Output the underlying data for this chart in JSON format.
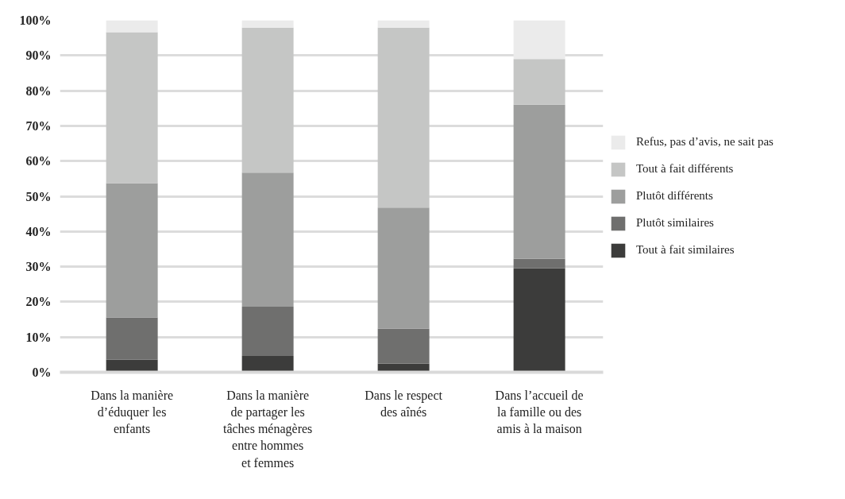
{
  "chart_data": {
    "type": "bar",
    "stacked": true,
    "categories": [
      "Dans la manière\nd’éduquer les\nenfants",
      "Dans la manière\nde partager les\ntâches ménagères\nentre hommes\net femmes",
      "Dans le respect\ndes aînés",
      "Dans l’accueil de\nla famille ou des\namis à la maison"
    ],
    "series": [
      {
        "name": "Tout à fait similaires",
        "color": "#3c3c3b",
        "values": [
          3.6,
          4.6,
          2.4,
          29.5
        ]
      },
      {
        "name": "Plutôt similaires",
        "color": "#6f6f6e",
        "values": [
          12.0,
          14.0,
          10.0,
          2.7
        ]
      },
      {
        "name": "Plutôt différents",
        "color": "#9d9e9d",
        "values": [
          38.1,
          38.1,
          34.4,
          43.8
        ]
      },
      {
        "name": "Tout à fait différents",
        "color": "#c5c6c5",
        "values": [
          42.9,
          41.2,
          51.1,
          13.0
        ]
      },
      {
        "name": "Refus, pas d’avis, ne sait pas",
        "color": "#ebebeb",
        "values": [
          3.4,
          2.1,
          2.1,
          11.0
        ]
      }
    ],
    "ylim": [
      0,
      100
    ],
    "yticks": [
      {
        "value": 0,
        "label": "0%"
      },
      {
        "value": 10,
        "label": "10%"
      },
      {
        "value": 20,
        "label": "20%"
      },
      {
        "value": 30,
        "label": "30%"
      },
      {
        "value": 40,
        "label": "40%"
      },
      {
        "value": 50,
        "label": "50%"
      },
      {
        "value": 60,
        "label": "60%"
      },
      {
        "value": 70,
        "label": "70%"
      },
      {
        "value": 80,
        "label": "80%"
      },
      {
        "value": 90,
        "label": "90%"
      },
      {
        "value": 100,
        "label": "100%"
      }
    ],
    "grid": "y",
    "legend": "right"
  }
}
